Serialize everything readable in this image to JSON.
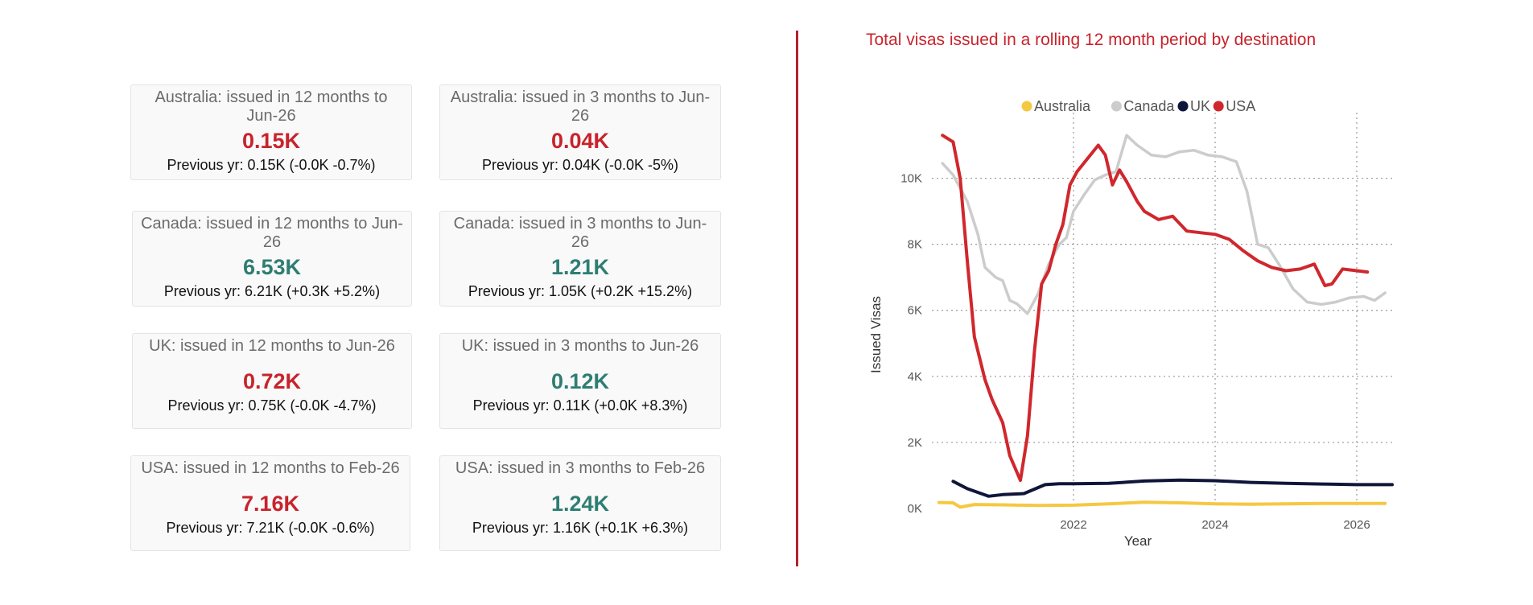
{
  "colors": {
    "negative": "#c8232c",
    "positive": "#2e7d72",
    "australia": "#f5c842",
    "canada": "#cccccc",
    "uk": "#10163a",
    "usa": "#d0272d"
  },
  "cards": [
    {
      "title": "Australia: issued in 12 months to Jun-26",
      "value": "0.15K",
      "previous": "Previous yr: 0.15K (-0.0K -0.7%)",
      "trend": "negative"
    },
    {
      "title": "Australia: issued in 3 months to Jun-26",
      "value": "0.04K",
      "previous": "Previous yr: 0.04K (-0.0K -5%)",
      "trend": "negative"
    },
    {
      "title": "Canada: issued in 12 months to Jun-26",
      "value": "6.53K",
      "previous": "Previous yr: 6.21K (+0.3K +5.2%)",
      "trend": "positive"
    },
    {
      "title": "Canada: issued in 3 months to Jun-26",
      "value": "1.21K",
      "previous": "Previous yr: 1.05K (+0.2K +15.2%)",
      "trend": "positive"
    },
    {
      "title": "UK: issued in 12 months to Jun-26",
      "value": "0.72K",
      "previous": "Previous yr: 0.75K (-0.0K -4.7%)",
      "trend": "negative"
    },
    {
      "title": "UK: issued in 3 months to Jun-26",
      "value": "0.12K",
      "previous": "Previous yr: 0.11K (+0.0K +8.3%)",
      "trend": "positive"
    },
    {
      "title": "USA: issued in 12 months to Feb-26",
      "value": "7.16K",
      "previous": "Previous yr: 7.21K (-0.0K -0.6%)",
      "trend": "negative"
    },
    {
      "title": "USA: issued in 3 months to Feb-26",
      "value": "1.24K",
      "previous": "Previous yr: 1.16K (+0.1K +6.3%)",
      "trend": "positive"
    }
  ],
  "chart_data": {
    "type": "line",
    "title": "Total visas issued in a rolling 12 month period by destination",
    "xlabel": "Year",
    "ylabel": "Issued Visas",
    "xlim": [
      2020.0,
      2026.5
    ],
    "ylim": [
      0,
      11500
    ],
    "x_ticks": [
      2022,
      2024,
      2026
    ],
    "y_ticks": [
      0,
      2000,
      4000,
      6000,
      8000,
      10000
    ],
    "y_tick_labels": [
      "0K",
      "2K",
      "4K",
      "6K",
      "8K",
      "10K"
    ],
    "grid": true,
    "legend": "top-center",
    "series": [
      {
        "name": "Australia",
        "color_key": "australia",
        "x": [
          2020.1,
          2020.3,
          2020.4,
          2020.6,
          2021.0,
          2021.5,
          2022.0,
          2022.5,
          2023.0,
          2023.5,
          2024.0,
          2024.5,
          2025.0,
          2025.5,
          2026.0,
          2026.4
        ],
        "y": [
          180,
          170,
          40,
          120,
          110,
          90,
          100,
          140,
          190,
          170,
          140,
          130,
          140,
          150,
          150,
          150
        ]
      },
      {
        "name": "Canada",
        "color_key": "canada",
        "x": [
          2020.15,
          2020.3,
          2020.5,
          2020.65,
          2020.75,
          2020.9,
          2021.0,
          2021.1,
          2021.2,
          2021.35,
          2021.5,
          2021.65,
          2021.8,
          2021.9,
          2022.0,
          2022.15,
          2022.3,
          2022.45,
          2022.6,
          2022.75,
          2022.9,
          2023.1,
          2023.3,
          2023.5,
          2023.7,
          2023.9,
          2024.1,
          2024.3,
          2024.45,
          2024.6,
          2024.75,
          2024.9,
          2025.1,
          2025.3,
          2025.5,
          2025.7,
          2025.9,
          2026.1,
          2026.25,
          2026.4
        ],
        "y": [
          10450,
          10100,
          9300,
          8300,
          7300,
          7000,
          6900,
          6300,
          6200,
          5900,
          6500,
          7400,
          8000,
          8200,
          9000,
          9500,
          9950,
          10100,
          10200,
          11300,
          11000,
          10700,
          10650,
          10800,
          10850,
          10700,
          10650,
          10500,
          9600,
          8000,
          7900,
          7400,
          6650,
          6250,
          6180,
          6250,
          6380,
          6420,
          6300,
          6530
        ]
      },
      {
        "name": "UK",
        "color_key": "uk",
        "x": [
          2020.3,
          2020.5,
          2020.8,
          2021.0,
          2021.3,
          2021.6,
          2021.8,
          2022.0,
          2022.5,
          2023.0,
          2023.5,
          2024.0,
          2024.5,
          2025.0,
          2025.5,
          2026.0,
          2026.5
        ],
        "y": [
          820,
          600,
          370,
          420,
          450,
          720,
          750,
          750,
          760,
          830,
          860,
          840,
          790,
          760,
          740,
          720,
          720
        ]
      },
      {
        "name": "USA",
        "color_key": "usa",
        "x": [
          2020.15,
          2020.3,
          2020.4,
          2020.5,
          2020.6,
          2020.75,
          2020.85,
          2021.0,
          2021.1,
          2021.25,
          2021.35,
          2021.45,
          2021.55,
          2021.65,
          2021.75,
          2021.85,
          2021.95,
          2022.05,
          2022.2,
          2022.35,
          2022.45,
          2022.55,
          2022.65,
          2022.75,
          2022.9,
          2023.0,
          2023.2,
          2023.4,
          2023.6,
          2023.8,
          2024.0,
          2024.2,
          2024.4,
          2024.6,
          2024.8,
          2025.0,
          2025.2,
          2025.4,
          2025.55,
          2025.65,
          2025.8,
          2026.0,
          2026.15
        ],
        "y": [
          11300,
          11100,
          10000,
          7500,
          5200,
          3900,
          3300,
          2600,
          1600,
          850,
          2200,
          4800,
          6800,
          7200,
          8000,
          8600,
          9800,
          10200,
          10600,
          11000,
          10700,
          9800,
          10250,
          9900,
          9300,
          9000,
          8750,
          8850,
          8400,
          8350,
          8300,
          8150,
          7800,
          7500,
          7300,
          7200,
          7250,
          7400,
          6750,
          6800,
          7250,
          7200,
          7160
        ]
      }
    ]
  }
}
